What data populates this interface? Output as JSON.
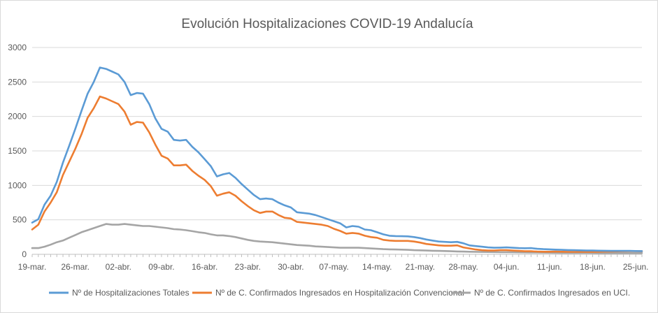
{
  "chart_data": {
    "type": "line",
    "title": "Evolución Hospitalizaciones COVID-19 Andalucía",
    "xlabel": "",
    "ylabel": "",
    "ylim": [
      0,
      3000
    ],
    "yticks": [
      0,
      500,
      1000,
      1500,
      2000,
      2500,
      3000
    ],
    "xticks": [
      "19-mar.",
      "26-mar.",
      "02-abr.",
      "09-abr.",
      "16-abr.",
      "23-abr.",
      "30-abr.",
      "07-may.",
      "14-may.",
      "21-may.",
      "28-may.",
      "04-jun.",
      "11-jun.",
      "18-jun.",
      "25-jun."
    ],
    "x_start": "19-mar.",
    "x_interval_days": 1,
    "grid": "horizontal",
    "legend": "bottom",
    "series": [
      {
        "name": "Nº de Hospitalizaciones Totales",
        "color": "#5b9bd5",
        "values": [
          460,
          510,
          720,
          850,
          1050,
          1330,
          1570,
          1820,
          2080,
          2330,
          2500,
          2710,
          2690,
          2650,
          2610,
          2500,
          2310,
          2340,
          2330,
          2180,
          1970,
          1820,
          1780,
          1660,
          1650,
          1660,
          1560,
          1480,
          1380,
          1280,
          1130,
          1160,
          1180,
          1110,
          1020,
          940,
          860,
          800,
          810,
          800,
          750,
          710,
          680,
          610,
          600,
          590,
          570,
          540,
          510,
          480,
          450,
          390,
          410,
          400,
          360,
          350,
          320,
          290,
          270,
          265,
          262,
          260,
          250,
          235,
          215,
          200,
          185,
          180,
          175,
          180,
          160,
          130,
          120,
          110,
          100,
          95,
          97,
          100,
          95,
          90,
          88,
          90,
          80,
          75,
          72,
          68,
          65,
          62,
          60,
          58,
          55,
          55,
          53,
          52,
          50,
          50,
          50,
          50,
          48,
          47
        ]
      },
      {
        "name": "Nº de C. Confirmados Ingresados en Hospitalización Convencional",
        "color": "#ed7d31",
        "values": [
          360,
          430,
          620,
          750,
          900,
          1150,
          1340,
          1530,
          1740,
          1980,
          2120,
          2290,
          2260,
          2220,
          2180,
          2070,
          1880,
          1920,
          1910,
          1770,
          1590,
          1430,
          1390,
          1290,
          1290,
          1300,
          1210,
          1140,
          1080,
          990,
          850,
          880,
          900,
          850,
          770,
          700,
          640,
          600,
          620,
          620,
          570,
          530,
          520,
          470,
          460,
          450,
          440,
          430,
          410,
          370,
          340,
          300,
          310,
          300,
          270,
          250,
          240,
          210,
          200,
          195,
          195,
          195,
          185,
          170,
          150,
          140,
          130,
          125,
          125,
          130,
          100,
          85,
          70,
          60,
          55,
          55,
          60,
          60,
          55,
          50,
          45,
          45,
          40,
          38,
          38,
          40,
          38,
          36,
          35,
          35,
          35,
          36,
          38,
          40,
          42,
          44,
          45,
          46,
          46,
          45
        ]
      },
      {
        "name": "Nº de C. Confirmados Ingresados en UCI.",
        "color": "#a5a5a5",
        "values": [
          90,
          90,
          110,
          140,
          175,
          200,
          240,
          280,
          320,
          350,
          380,
          410,
          440,
          430,
          430,
          440,
          430,
          420,
          410,
          410,
          400,
          390,
          380,
          365,
          360,
          350,
          335,
          320,
          310,
          290,
          275,
          275,
          265,
          250,
          230,
          210,
          195,
          185,
          180,
          175,
          165,
          155,
          145,
          135,
          130,
          125,
          115,
          110,
          105,
          100,
          95,
          95,
          95,
          95,
          90,
          85,
          80,
          75,
          72,
          70,
          68,
          65,
          60,
          58,
          55,
          52,
          50,
          48,
          45,
          42,
          40,
          38,
          36,
          34,
          33,
          32,
          30,
          30,
          29,
          28,
          27,
          26,
          25,
          24,
          23,
          22,
          21,
          20,
          20,
          20,
          20,
          19,
          18,
          18,
          18,
          18,
          18,
          18,
          18,
          18
        ]
      }
    ]
  }
}
